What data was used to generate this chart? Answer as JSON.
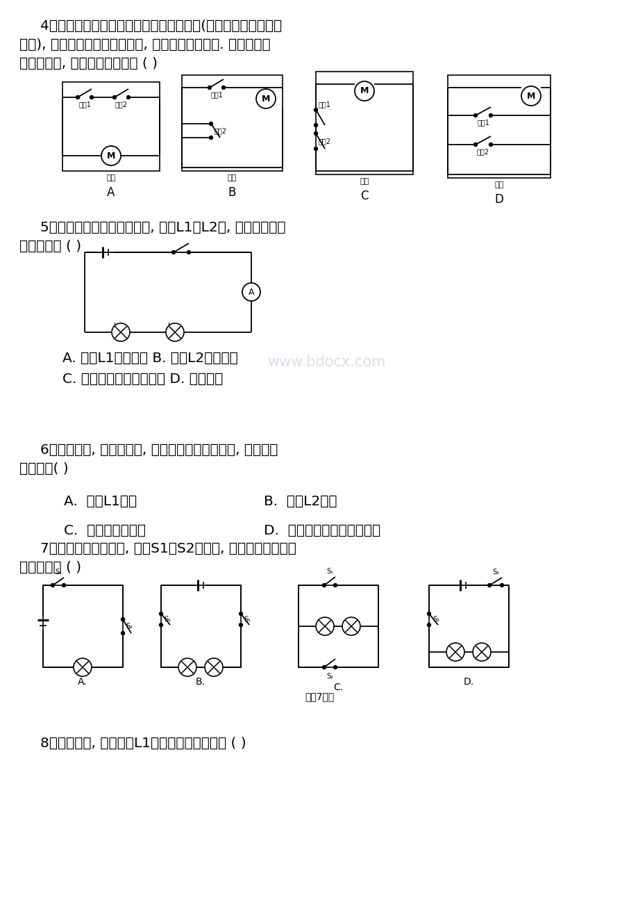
{
  "bg_color": "#ffffff",
  "watermark_color": "#c8d4e8",
  "q4_text": [
    "4．某机要室电动门的控制电路有两把钥匙(其实就是控制电路的",
    "开关), 分别由两名工作人员保管, 单把钥匙无法打开. 如图所示的",
    "各控制电路, 符合上述要求的是 ( )"
  ],
  "q5_text": [
    "5．两个灯泡串联接在电源上, 发现L1比L2亮, 那么下列说法",
    "中正确的是 ( )"
  ],
  "q5_ans": [
    "A. 通过L1的电流大 B. 通过L2的电流大",
    "C. 通过两灯的电流一样大 D. 无法判断"
  ],
  "q6_text": [
    "6．如图所示, 闭合开关后, 发现电流表的指针不动, 可能出现",
    "的问题是( )"
  ],
  "q6_ans_a": "A.  电灯L1短路",
  "q6_ans_b": "B.  电灯L2短路",
  "q6_ans_c": "C.  有一只灯泡坏了",
  "q6_ans_d": "D.  电流表正负接线柱接反了",
  "q7_text": [
    "7．如图所示的各电路, 开关S1、S2闭合后, 两只小灯泡都能正",
    "常发光的是 ( )"
  ],
  "q7_caption": "（第7题）",
  "q8_text": "8．如图所示, 能测出灯L1两端电压的电路图是 ( )"
}
